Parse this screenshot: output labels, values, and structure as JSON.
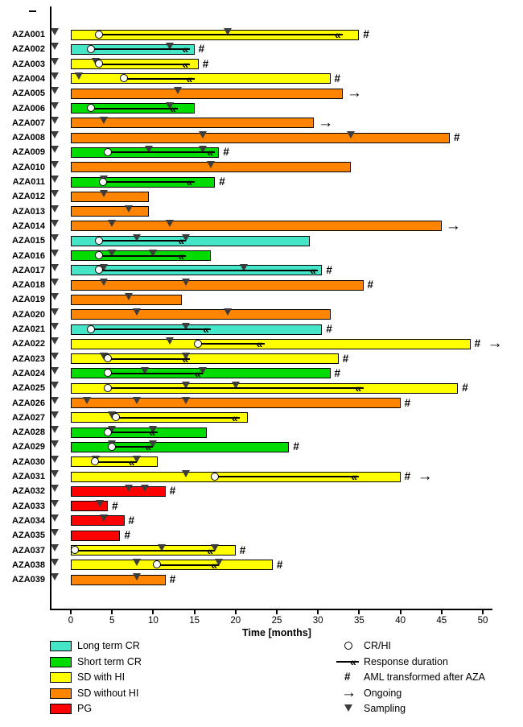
{
  "colors": {
    "long_term_cr": "#45E6C8",
    "short_term_cr": "#00DB00",
    "sd_with_hi": "#FFFF00",
    "sd_without_hi": "#FF8400",
    "pg": "#FF0000",
    "sampling_marker": "#3C3C3C"
  },
  "legend": {
    "categories": [
      {
        "key": "long_term_cr",
        "label": "Long term CR"
      },
      {
        "key": "short_term_cr",
        "label": "Short term CR"
      },
      {
        "key": "sd_with_hi",
        "label": "SD with HI"
      },
      {
        "key": "sd_without_hi",
        "label": "SD without HI"
      },
      {
        "key": "pg",
        "label": "PG"
      }
    ],
    "symbols": [
      {
        "symbol": "circle",
        "label": "CR/HI"
      },
      {
        "symbol": "line",
        "label": "Response duration"
      },
      {
        "symbol": "hash",
        "label": "AML transformed after AZA"
      },
      {
        "symbol": "arrow",
        "label": "Ongoing"
      },
      {
        "symbol": "triangle",
        "label": "Sampling"
      }
    ]
  },
  "chart_data": {
    "type": "bar",
    "subtype": "swimmer-plot",
    "orientation": "horizontal",
    "title": "",
    "xlabel": "Time [months]",
    "ylabel": "",
    "xlim": [
      0,
      50
    ],
    "xticks": [
      0,
      5,
      10,
      15,
      20,
      25,
      30,
      35,
      40,
      45,
      50
    ],
    "grid": false,
    "legend_position": "bottom",
    "units": "months",
    "patients": [
      {
        "id": "AZA001",
        "category": "sd_with_hi",
        "bar": 35,
        "circle": 3.5,
        "resp_end": 33,
        "sampling": [
          -2,
          19
        ],
        "aml": true,
        "ongoing": false
      },
      {
        "id": "AZA002",
        "category": "long_term_cr",
        "bar": 15,
        "circle": 2.5,
        "resp_end": 14.5,
        "sampling": [
          -2,
          12
        ],
        "aml": true,
        "ongoing": false
      },
      {
        "id": "AZA003",
        "category": "sd_with_hi",
        "bar": 15.5,
        "circle": 3.5,
        "resp_end": 14.5,
        "sampling": [
          -2,
          3
        ],
        "aml": true,
        "ongoing": false
      },
      {
        "id": "AZA004",
        "category": "sd_with_hi",
        "bar": 31.5,
        "circle": 6.5,
        "resp_end": 15,
        "sampling": [
          -2,
          1
        ],
        "aml": true,
        "ongoing": false
      },
      {
        "id": "AZA005",
        "category": "sd_without_hi",
        "bar": 33,
        "circle": null,
        "resp_end": null,
        "sampling": [
          -2,
          13
        ],
        "aml": false,
        "ongoing": true
      },
      {
        "id": "AZA006",
        "category": "short_term_cr",
        "bar": 15,
        "circle": 2.5,
        "resp_end": 13,
        "sampling": [
          -2,
          12
        ],
        "aml": false,
        "ongoing": false
      },
      {
        "id": "AZA007",
        "category": "sd_without_hi",
        "bar": 29.5,
        "circle": null,
        "resp_end": null,
        "sampling": [
          -2,
          4
        ],
        "aml": false,
        "ongoing": true
      },
      {
        "id": "AZA008",
        "category": "sd_without_hi",
        "bar": 46,
        "circle": null,
        "resp_end": null,
        "sampling": [
          -2,
          16,
          34
        ],
        "aml": true,
        "ongoing": false
      },
      {
        "id": "AZA009",
        "category": "short_term_cr",
        "bar": 18,
        "circle": 4.5,
        "resp_end": 17.5,
        "sampling": [
          -2,
          9.5,
          16
        ],
        "aml": true,
        "ongoing": false
      },
      {
        "id": "AZA010",
        "category": "sd_without_hi",
        "bar": 34,
        "circle": null,
        "resp_end": null,
        "sampling": [
          -2,
          17
        ],
        "aml": false,
        "ongoing": false
      },
      {
        "id": "AZA011",
        "category": "short_term_cr",
        "bar": 17.5,
        "circle": 4,
        "resp_end": 15,
        "sampling": [
          -2,
          4
        ],
        "aml": true,
        "ongoing": false
      },
      {
        "id": "AZA012",
        "category": "sd_without_hi",
        "bar": 9.5,
        "circle": null,
        "resp_end": null,
        "sampling": [
          -2,
          4
        ],
        "aml": false,
        "ongoing": false
      },
      {
        "id": "AZA013",
        "category": "sd_without_hi",
        "bar": 9.5,
        "circle": null,
        "resp_end": null,
        "sampling": [
          -2,
          7
        ],
        "aml": false,
        "ongoing": false
      },
      {
        "id": "AZA014",
        "category": "sd_without_hi",
        "bar": 45,
        "circle": null,
        "resp_end": null,
        "sampling": [
          -2,
          5,
          12
        ],
        "aml": false,
        "ongoing": true
      },
      {
        "id": "AZA015",
        "category": "long_term_cr",
        "bar": 29,
        "circle": 3.5,
        "resp_end": 14,
        "sampling": [
          -2,
          8,
          14
        ],
        "aml": false,
        "ongoing": false
      },
      {
        "id": "AZA016",
        "category": "short_term_cr",
        "bar": 17,
        "circle": 3.5,
        "resp_end": 14,
        "sampling": [
          -2,
          5,
          10
        ],
        "aml": false,
        "ongoing": false
      },
      {
        "id": "AZA017",
        "category": "long_term_cr",
        "bar": 30.5,
        "circle": 3.5,
        "resp_end": 30,
        "sampling": [
          -2,
          4,
          21
        ],
        "aml": true,
        "ongoing": false
      },
      {
        "id": "AZA018",
        "category": "sd_without_hi",
        "bar": 35.5,
        "circle": null,
        "resp_end": null,
        "sampling": [
          -2,
          4,
          14
        ],
        "aml": true,
        "ongoing": false
      },
      {
        "id": "AZA019",
        "category": "sd_without_hi",
        "bar": 13.5,
        "circle": null,
        "resp_end": null,
        "sampling": [
          -2,
          7
        ],
        "aml": false,
        "ongoing": false
      },
      {
        "id": "AZA020",
        "category": "sd_without_hi",
        "bar": 31.5,
        "circle": null,
        "resp_end": null,
        "sampling": [
          -2,
          8,
          19
        ],
        "aml": false,
        "ongoing": false
      },
      {
        "id": "AZA021",
        "category": "long_term_cr",
        "bar": 30.5,
        "circle": 2.5,
        "resp_end": 17,
        "sampling": [
          -2,
          14
        ],
        "aml": true,
        "ongoing": false
      },
      {
        "id": "AZA022",
        "category": "sd_with_hi",
        "bar": 48.5,
        "circle": 15.5,
        "resp_end": 23.5,
        "sampling": [
          -2,
          12
        ],
        "aml": true,
        "ongoing": true
      },
      {
        "id": "AZA023",
        "category": "sd_with_hi",
        "bar": 32.5,
        "circle": 4.5,
        "resp_end": 14.5,
        "sampling": [
          -2,
          4,
          14
        ],
        "aml": true,
        "ongoing": false
      },
      {
        "id": "AZA024",
        "category": "short_term_cr",
        "bar": 31.5,
        "circle": 4.5,
        "resp_end": 16,
        "sampling": [
          -2,
          9,
          16
        ],
        "aml": true,
        "ongoing": false
      },
      {
        "id": "AZA025",
        "category": "sd_with_hi",
        "bar": 47,
        "circle": 4.5,
        "resp_end": 35.5,
        "sampling": [
          -2,
          14,
          20
        ],
        "aml": true,
        "ongoing": false
      },
      {
        "id": "AZA026",
        "category": "sd_without_hi",
        "bar": 40,
        "circle": null,
        "resp_end": null,
        "sampling": [
          -2,
          2,
          8,
          14
        ],
        "aml": true,
        "ongoing": false
      },
      {
        "id": "AZA027",
        "category": "sd_with_hi",
        "bar": 21.5,
        "circle": 5.5,
        "resp_end": 20.5,
        "sampling": [
          -2,
          5
        ],
        "aml": false,
        "ongoing": false
      },
      {
        "id": "AZA028",
        "category": "short_term_cr",
        "bar": 16.5,
        "circle": 4.5,
        "resp_end": 10.5,
        "sampling": [
          -2,
          5,
          10
        ],
        "aml": false,
        "ongoing": false
      },
      {
        "id": "AZA029",
        "category": "short_term_cr",
        "bar": 26.5,
        "circle": 5,
        "resp_end": 10,
        "sampling": [
          -2,
          5,
          10
        ],
        "aml": true,
        "ongoing": false
      },
      {
        "id": "AZA030",
        "category": "sd_with_hi",
        "bar": 10.5,
        "circle": 3,
        "resp_end": 8,
        "sampling": [
          -2,
          3,
          8
        ],
        "aml": false,
        "ongoing": false
      },
      {
        "id": "AZA031",
        "category": "sd_with_hi",
        "bar": 40,
        "circle": 17.5,
        "resp_end": 35,
        "sampling": [
          -2,
          14
        ],
        "aml": true,
        "ongoing": true
      },
      {
        "id": "AZA032",
        "category": "pg",
        "bar": 11.5,
        "circle": null,
        "resp_end": null,
        "sampling": [
          -2,
          7,
          9
        ],
        "aml": true,
        "ongoing": false
      },
      {
        "id": "AZA033",
        "category": "pg",
        "bar": 4.5,
        "circle": null,
        "resp_end": null,
        "sampling": [
          -2,
          3.5
        ],
        "aml": true,
        "ongoing": false
      },
      {
        "id": "AZA034",
        "category": "pg",
        "bar": 6.5,
        "circle": null,
        "resp_end": null,
        "sampling": [
          -2,
          4
        ],
        "aml": true,
        "ongoing": false
      },
      {
        "id": "AZA035",
        "category": "pg",
        "bar": 6,
        "circle": null,
        "resp_end": null,
        "sampling": [
          -2
        ],
        "aml": true,
        "ongoing": false
      },
      {
        "id": "AZA037",
        "category": "sd_with_hi",
        "bar": 20,
        "circle": 0.5,
        "resp_end": 17.5,
        "sampling": [
          -2,
          11,
          17.5
        ],
        "aml": true,
        "ongoing": false
      },
      {
        "id": "AZA038",
        "category": "sd_with_hi",
        "bar": 24.5,
        "circle": 10.5,
        "resp_end": 18,
        "sampling": [
          -2,
          8,
          18
        ],
        "aml": true,
        "ongoing": false
      },
      {
        "id": "AZA039",
        "category": "sd_without_hi",
        "bar": 11.5,
        "circle": null,
        "resp_end": null,
        "sampling": [
          -2,
          8
        ],
        "aml": true,
        "ongoing": false
      }
    ]
  }
}
